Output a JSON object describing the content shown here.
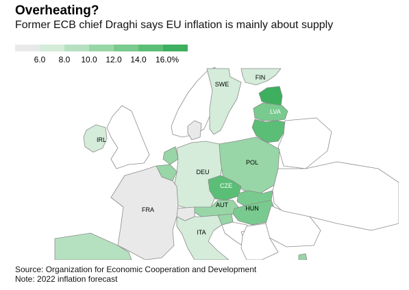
{
  "header": {
    "title": "Overheating?",
    "subtitle": "Former ECB chief Draghi says EU inflation is mainly about supply"
  },
  "legend": {
    "colors": [
      "#e9e9e9",
      "#d4ecd9",
      "#b6e1c0",
      "#98d6a7",
      "#79ca8e",
      "#5bbe76",
      "#3daf5e"
    ],
    "labels": [
      "6.0",
      "8.0",
      "10.0",
      "12.0",
      "14.0",
      "16.0%"
    ]
  },
  "map": {
    "country_labels": {
      "fin": "FIN",
      "swe": "SWE",
      "lva": "LVA",
      "irl": "IRL",
      "deu": "DEU",
      "pol": "POL",
      "cze": "CZE",
      "aut": "AUT",
      "hun": "HUN",
      "fra": "FRA",
      "ita": "ITA"
    },
    "fills": {
      "no_data": "#ffffff",
      "border": "#8a8a8a"
    }
  },
  "footer": {
    "source": "Source: Organization for Economic Cooperation and Development",
    "note": "Note: 2022 inflation forecast"
  }
}
